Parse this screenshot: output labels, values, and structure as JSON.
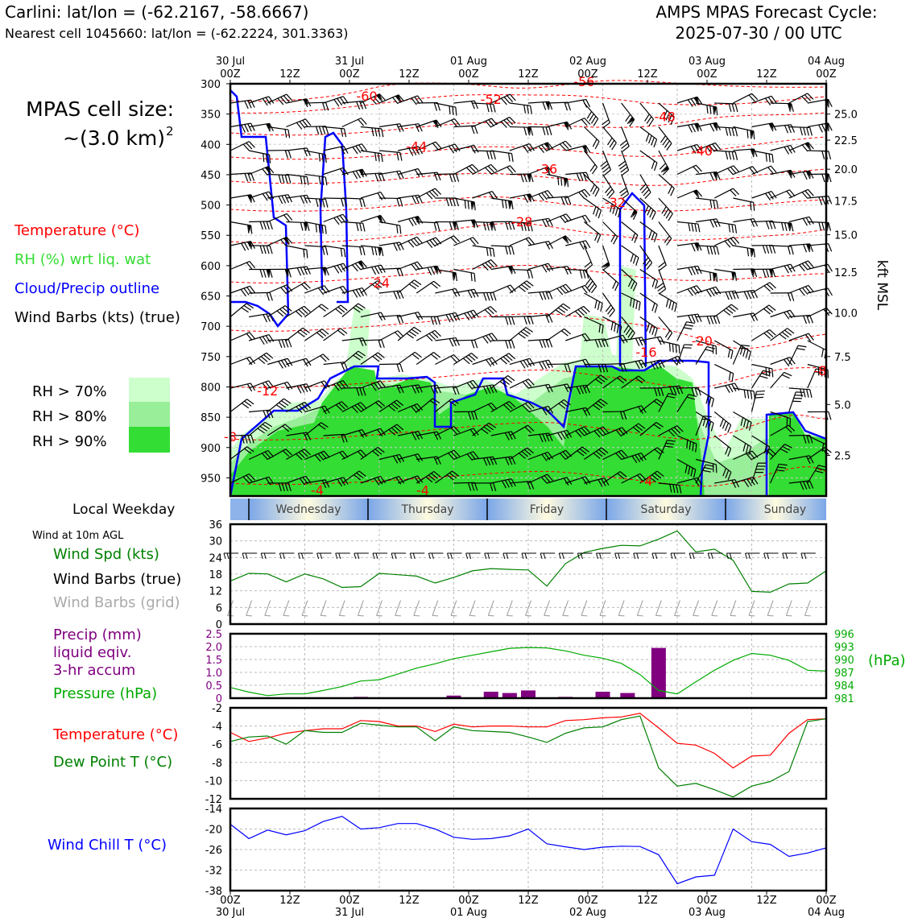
{
  "header": {
    "station": "Carlini: lat/lon = (-62.2167, -58.6667)",
    "nearest_cell": "Nearest cell 1045660: lat/lon = (-62.2224, 301.3363)",
    "cycle_line1": "AMPS MPAS Forecast Cycle:",
    "cycle_line2": "2025-07-30 / 00 UTC"
  },
  "cell_size": {
    "line1": "MPAS cell size:",
    "line2": "~(3.0 km)",
    "sup": "2"
  },
  "legend": {
    "temperature": "Temperature (°C)",
    "rh": "RH (%) wrt liq. wat",
    "cloud": "Cloud/Precip outline",
    "wind": "Wind Barbs (kts) (true)",
    "rh70": "RH > 70%",
    "rh80": "RH > 80%",
    "rh90": "RH > 90%",
    "colors": {
      "temperature": "#ff0000",
      "rh": "#33dd33",
      "cloud": "#0000ff",
      "wind": "#000000",
      "rh70": "#ccffcc",
      "rh80": "#99ee99",
      "rh90": "#33dd33"
    }
  },
  "time_axis": {
    "top_labels": [
      {
        "day": "30 Jul",
        "hour": "00Z"
      },
      {
        "day": "",
        "hour": "12Z"
      },
      {
        "day": "31 Jul",
        "hour": "00Z"
      },
      {
        "day": "",
        "hour": "12Z"
      },
      {
        "day": "01 Aug",
        "hour": "00Z"
      },
      {
        "day": "",
        "hour": "12Z"
      },
      {
        "day": "02 Aug",
        "hour": "00Z"
      },
      {
        "day": "",
        "hour": "12Z"
      },
      {
        "day": "03 Aug",
        "hour": "00Z"
      },
      {
        "day": "",
        "hour": "12Z"
      },
      {
        "day": "04 Aug",
        "hour": "00Z"
      }
    ]
  },
  "weekday_bar": {
    "label": "Local Weekday",
    "days": [
      "Wednesday",
      "Thursday",
      "Friday",
      "Saturday",
      "Sunday"
    ]
  },
  "panel_labels": {
    "wind_at": "Wind at 10m AGL",
    "wind_spd": "Wind Spd (kts)",
    "wind_barbs": "Wind Barbs (true)",
    "wind_grid": "Wind Barbs (grid)",
    "precip1": "Precip (mm)",
    "precip2": "liquid eqiv.",
    "precip3": "3-hr accum",
    "pressure": "Pressure (hPa)",
    "pressure_unit": "(hPa)",
    "temp": "Temperature (°C)",
    "dew": "Dew Point T (°C)",
    "chill": "Wind Chill T (°C)",
    "kft": "kft MSL"
  },
  "chart_data": [
    {
      "type": "heatmap",
      "name": "cross-section",
      "y_pressure_ticks": [
        "300",
        "350",
        "400",
        "450",
        "500",
        "550",
        "600",
        "650",
        "700",
        "750",
        "800",
        "850",
        "900",
        "950"
      ],
      "ylim_hpa": [
        980,
        300
      ],
      "right_kft_ticks": [
        "25.0",
        "22.5",
        "20.0",
        "17.5",
        "15.0",
        "12.5",
        "10.0",
        "7.5",
        "5.0",
        "2.5"
      ],
      "right_kft_at_hpa": [
        350,
        393,
        441,
        493,
        549,
        611,
        678,
        750,
        829,
        913
      ],
      "temperature_contour_labels": [
        {
          "text": "-60",
          "t": 22,
          "p": 320
        },
        {
          "text": "-56",
          "t": 57,
          "p": 296
        },
        {
          "text": "-52",
          "t": 42,
          "p": 325
        },
        {
          "text": "-48",
          "t": 70,
          "p": 354
        },
        {
          "text": "-44",
          "t": 30,
          "p": 403
        },
        {
          "text": "-40",
          "t": 76,
          "p": 410
        },
        {
          "text": "-36",
          "t": 51,
          "p": 440
        },
        {
          "text": "-32",
          "t": 62,
          "p": 495
        },
        {
          "text": "-28",
          "t": 47,
          "p": 527
        },
        {
          "text": "-24",
          "t": 24,
          "p": 628
        },
        {
          "text": "-20",
          "t": 76,
          "p": 724
        },
        {
          "text": "-16",
          "t": 67,
          "p": 742
        },
        {
          "text": "-12",
          "t": 6,
          "p": 806
        },
        {
          "text": "-8",
          "t": 0,
          "p": 882
        },
        {
          "text": "-8",
          "t": 95,
          "p": 773
        },
        {
          "text": "-4",
          "t": 14,
          "p": 970
        },
        {
          "text": "-4",
          "t": 31,
          "p": 970
        },
        {
          "text": "-4",
          "t": 67,
          "p": 955
        }
      ]
    },
    {
      "type": "line",
      "name": "wind-speed-10m",
      "x_hours": [
        0,
        3,
        6,
        9,
        12,
        15,
        18,
        21,
        24,
        27,
        30,
        33,
        36,
        39,
        42,
        45,
        48,
        51,
        54,
        57,
        60,
        63,
        66,
        69,
        72,
        75,
        78,
        81,
        84,
        87,
        90,
        93,
        96
      ],
      "values": [
        15.5,
        18.3,
        18.1,
        15.2,
        18.1,
        16.3,
        13.2,
        13.5,
        18.3,
        17.8,
        17.3,
        14.8,
        16.8,
        19.2,
        20.0,
        19.7,
        19.5,
        13.7,
        21.8,
        25.8,
        27.3,
        28.4,
        28.2,
        30.6,
        33.6,
        26.0,
        27.0,
        23.0,
        11.8,
        11.5,
        14.5,
        14.8,
        19.2
      ],
      "ylim": [
        0,
        36
      ],
      "yticks": [
        "0",
        "6",
        "12",
        "18",
        "24",
        "30",
        "36"
      ],
      "color": "#008000"
    },
    {
      "type": "bar",
      "name": "precip-3hr",
      "x_hours": [
        21,
        36,
        42,
        45,
        48,
        54,
        60,
        64,
        69
      ],
      "values": [
        0.05,
        0.1,
        0.25,
        0.2,
        0.3,
        0.05,
        0.25,
        0.2,
        1.95
      ],
      "ylim": [
        0,
        2.5
      ],
      "yticks": [
        "0",
        "0.5",
        "1.0",
        "1.5",
        "2.0",
        "2.5"
      ],
      "color": "#800080"
    },
    {
      "type": "line",
      "name": "pressure",
      "x_hours": [
        0,
        3,
        6,
        9,
        12,
        15,
        18,
        21,
        24,
        27,
        30,
        33,
        36,
        39,
        42,
        45,
        48,
        51,
        54,
        57,
        60,
        63,
        66,
        69,
        72,
        75,
        78,
        81,
        84,
        87,
        90,
        93,
        96
      ],
      "values": [
        983.5,
        982.4,
        981.6,
        982.0,
        982.0,
        982.8,
        983.7,
        985.0,
        985.3,
        986.6,
        988.0,
        989.0,
        990.2,
        991.0,
        991.8,
        992.6,
        992.8,
        992.7,
        992.0,
        991.0,
        990.3,
        989.1,
        986.5,
        982.8,
        982.0,
        984.8,
        987.5,
        989.8,
        991.4,
        991.0,
        989.8,
        987.5,
        987.3
      ],
      "ylim": [
        981,
        996
      ],
      "yticks": [
        "981",
        "984",
        "987",
        "990",
        "993",
        "996"
      ],
      "color": "#00aa00"
    },
    {
      "type": "line",
      "name": "temperature-dewpoint",
      "x_hours": [
        0,
        3,
        6,
        9,
        12,
        15,
        18,
        21,
        24,
        27,
        30,
        33,
        36,
        39,
        42,
        45,
        48,
        51,
        54,
        57,
        60,
        63,
        66,
        69,
        72,
        75,
        78,
        81,
        84,
        87,
        90,
        93,
        96
      ],
      "series": [
        {
          "name": "Temperature (°C)",
          "color": "#ff0000",
          "values": [
            -4.7,
            -5.7,
            -5.3,
            -4.8,
            -4.5,
            -4.3,
            -4.3,
            -3.4,
            -3.5,
            -4.0,
            -4.0,
            -4.6,
            -3.8,
            -4.1,
            -4.0,
            -4.0,
            -4.1,
            -4.1,
            -3.4,
            -3.3,
            -3.1,
            -3.0,
            -2.6,
            -4.2,
            -5.9,
            -6.1,
            -7.0,
            -8.6,
            -7.3,
            -7.2,
            -4.8,
            -3.3,
            -3.2
          ]
        },
        {
          "name": "Dew Point T (°C)",
          "color": "#008000",
          "values": [
            -5.7,
            -5.2,
            -5.1,
            -6.0,
            -4.5,
            -4.7,
            -4.7,
            -3.7,
            -3.9,
            -4.1,
            -4.1,
            -5.6,
            -4.1,
            -4.5,
            -4.6,
            -4.7,
            -5.2,
            -5.8,
            -4.8,
            -4.2,
            -4.1,
            -3.3,
            -2.9,
            -8.6,
            -10.6,
            -10.3,
            -11.0,
            -11.8,
            -10.6,
            -10.1,
            -9.0,
            -3.5,
            -3.2
          ]
        }
      ],
      "ylim": [
        -12,
        -2
      ],
      "yticks": [
        "-2",
        "-4",
        "-6",
        "-8",
        "-10",
        "-12"
      ]
    },
    {
      "type": "line",
      "name": "wind-chill",
      "x_hours": [
        0,
        3,
        6,
        9,
        12,
        15,
        18,
        21,
        24,
        27,
        30,
        33,
        36,
        39,
        42,
        45,
        48,
        51,
        54,
        57,
        60,
        63,
        66,
        69,
        72,
        75,
        78,
        81,
        84,
        87,
        90,
        93,
        96
      ],
      "values": [
        -18.6,
        -22.8,
        -20.3,
        -21.7,
        -20.5,
        -17.8,
        -16.3,
        -20.0,
        -19.6,
        -18.4,
        -18.4,
        -20.0,
        -22.4,
        -23.0,
        -22.8,
        -22.0,
        -20.0,
        -24.3,
        -25.2,
        -26.0,
        -25.3,
        -25.0,
        -25.1,
        -27.5,
        -36.0,
        -34.0,
        -33.5,
        -20.0,
        -23.7,
        -24.5,
        -28.0,
        -27.0,
        -25.5
      ],
      "ylim": [
        -38,
        -14
      ],
      "yticks": [
        "-14",
        "-20",
        "-26",
        "-32",
        "-38"
      ],
      "color": "#0000ff"
    }
  ]
}
